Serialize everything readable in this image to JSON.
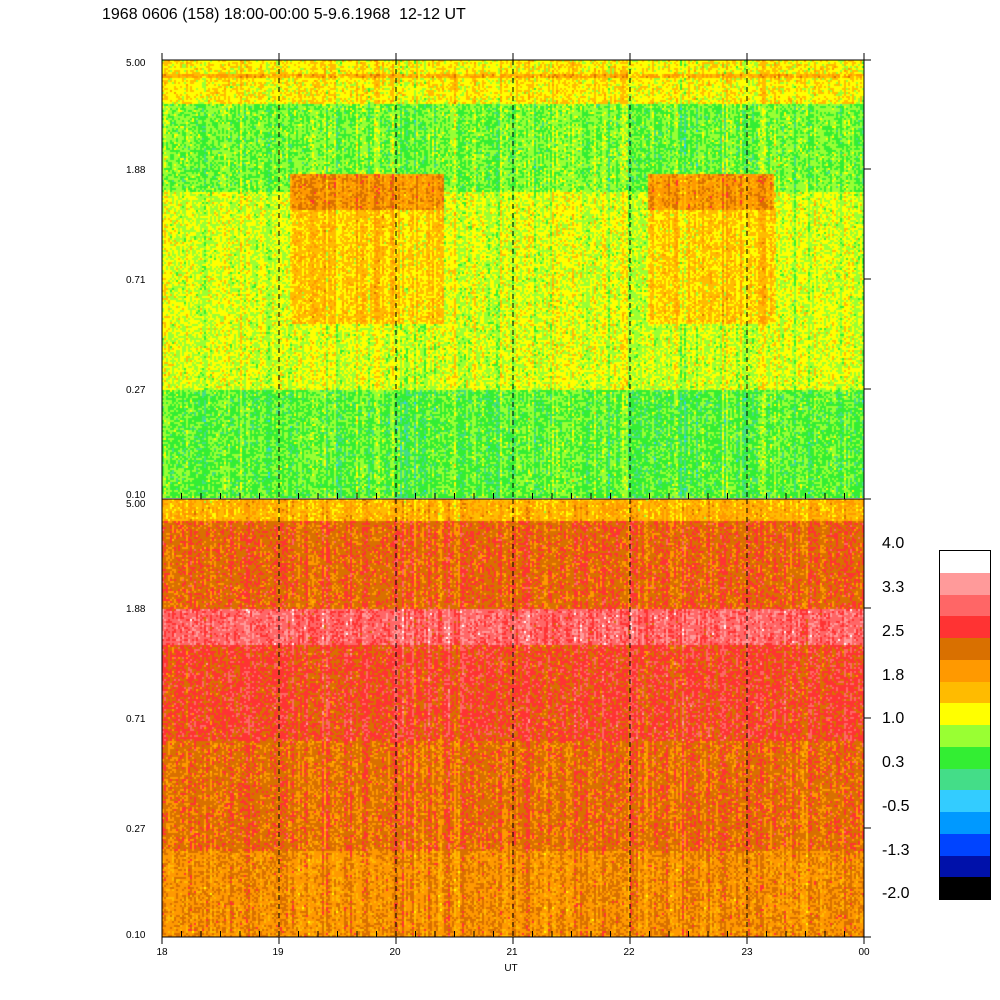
{
  "title": "1968 0606 (158) 18:00-00:00 5-9.6.1968  12-12 UT",
  "chart_data": [
    {
      "type": "heatmap",
      "panel": "top",
      "x_range": [
        18,
        24
      ],
      "y_scale": "log",
      "ylim": [
        0.1,
        5.0
      ],
      "y_ticks": [
        "5.00",
        "1.88",
        "0.71",
        "0.27",
        "0.10"
      ],
      "grid": "dashed vertical lines at each hour",
      "dominant_levels": "-0.5 to 0.3, enhancements to 1.0 near 1.5 at 19.4-20.4 and 22.1-23.2"
    },
    {
      "type": "heatmap",
      "panel": "bottom",
      "x_range": [
        18,
        24
      ],
      "y_scale": "log",
      "ylim": [
        0.1,
        5.0
      ],
      "y_ticks": [
        "5.00",
        "1.88",
        "0.71",
        "0.27",
        "0.10"
      ],
      "grid": "dashed vertical lines at each hour",
      "dominant_levels": "1.0 to 2.5, band of 2.5 near 1.5"
    }
  ],
  "x_ticks": [
    "18",
    "19",
    "20",
    "21",
    "22",
    "23",
    "00"
  ],
  "xlabel": "UT",
  "colorbar": {
    "labels": [
      "4.0",
      "3.3",
      "2.5",
      "1.8",
      "1.0",
      "0.3",
      "-0.5",
      "-1.3",
      "-2.0"
    ],
    "colors_top_to_bottom": [
      "#ffffff",
      "#ff9a9a",
      "#ff6666",
      "#ff3333",
      "#d97000",
      "#ff9900",
      "#ffbb00",
      "#ffff00",
      "#99ff33",
      "#33ee33",
      "#44dd88",
      "#33ccff",
      "#0099ff",
      "#0044ff",
      "#0011aa",
      "#000000"
    ]
  }
}
